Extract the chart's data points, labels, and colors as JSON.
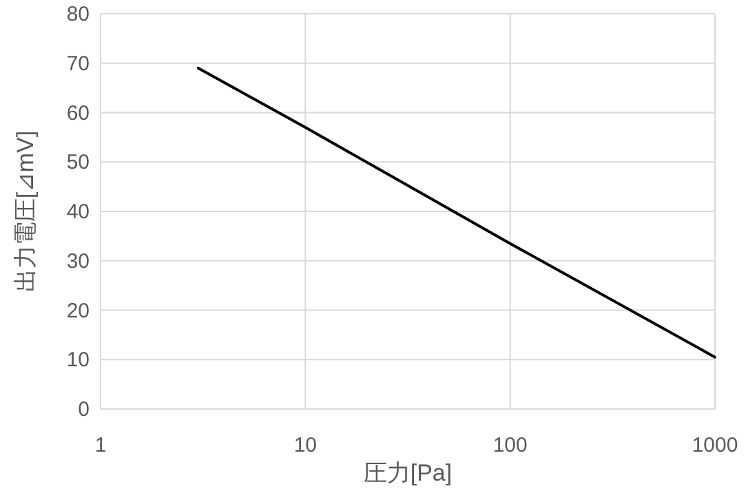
{
  "chart_data": {
    "type": "line",
    "xlabel": "圧力[Pa]",
    "ylabel": "出力電圧[⊿mV]",
    "x": [
      3,
      10,
      100,
      1000
    ],
    "series": [
      {
        "color": "#000000",
        "values": [
          69,
          57,
          33.5,
          10.5
        ]
      }
    ],
    "xlim": [
      1,
      1000
    ],
    "xticks": [
      1,
      10,
      100,
      1000
    ],
    "ylim": [
      0,
      80
    ],
    "yticks": [
      0,
      10,
      20,
      30,
      40,
      50,
      60,
      70,
      80
    ],
    "log": "x",
    "grid": true,
    "marker": "none",
    "line_style": "solid"
  }
}
